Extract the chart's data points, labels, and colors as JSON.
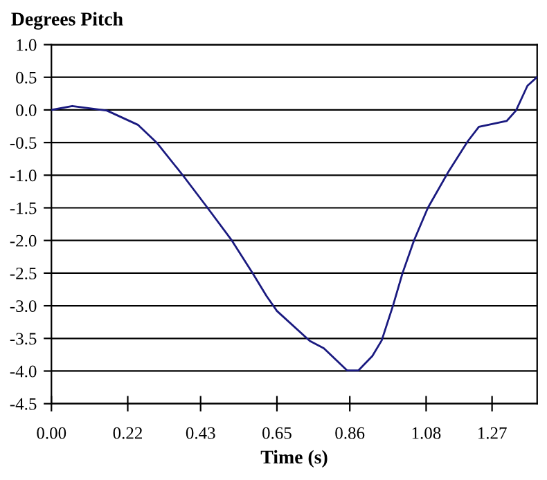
{
  "chart_data": {
    "type": "line",
    "ylabel": "Degrees Pitch",
    "xlabel": "Time (s)",
    "series": [
      {
        "color": "#1a1a80",
        "x": [
          0.0,
          0.06,
          0.16,
          0.25,
          0.305,
          0.38,
          0.45,
          0.52,
          0.58,
          0.62,
          0.65,
          0.745,
          0.785,
          0.852,
          0.885,
          0.925,
          0.952,
          0.985,
          1.012,
          1.045,
          1.085,
          1.145,
          1.2,
          1.232,
          1.312,
          1.339,
          1.372,
          1.399
        ],
        "values": [
          0.0,
          0.06,
          -0.01,
          -0.23,
          -0.51,
          -1.01,
          -1.5,
          -2.0,
          -2.5,
          -2.85,
          -3.08,
          -3.54,
          -3.65,
          -3.99,
          -3.99,
          -3.77,
          -3.53,
          -2.99,
          -2.5,
          -2.0,
          -1.5,
          -0.94,
          -0.48,
          -0.26,
          -0.17,
          -0.01,
          0.37,
          0.5
        ]
      }
    ],
    "xlim": [
      0,
      1.4
    ],
    "xticks": [
      {
        "value": 0,
        "label": "0.00"
      },
      {
        "value": 0.22,
        "label": "0.22"
      },
      {
        "value": 0.43,
        "label": "0.43"
      },
      {
        "value": 0.65,
        "label": "0.65"
      },
      {
        "value": 0.86,
        "label": "0.86"
      },
      {
        "value": 1.08,
        "label": "1.08"
      },
      {
        "value": 1.27,
        "label": "1.27"
      }
    ],
    "ylim": [
      -4.5,
      1.0
    ],
    "yticks": [
      {
        "value": 1.0,
        "label": "1.0"
      },
      {
        "value": 0.5,
        "label": "0.5"
      },
      {
        "value": 0,
        "label": "0.0"
      },
      {
        "value": -0.5,
        "label": "-0.5"
      },
      {
        "value": -1.0,
        "label": "-1.0"
      },
      {
        "value": -1.5,
        "label": "-1.5"
      },
      {
        "value": -2.0,
        "label": "-2.0"
      },
      {
        "value": -2.5,
        "label": "-2.5"
      },
      {
        "value": -3.0,
        "label": "-3.0"
      },
      {
        "value": -3.5,
        "label": "-3.5"
      },
      {
        "value": -4.0,
        "label": "-4.0"
      },
      {
        "value": -4.5,
        "label": "-4.5"
      }
    ],
    "grid": "y",
    "marker": "none",
    "line_style": "solid",
    "legend": false
  }
}
